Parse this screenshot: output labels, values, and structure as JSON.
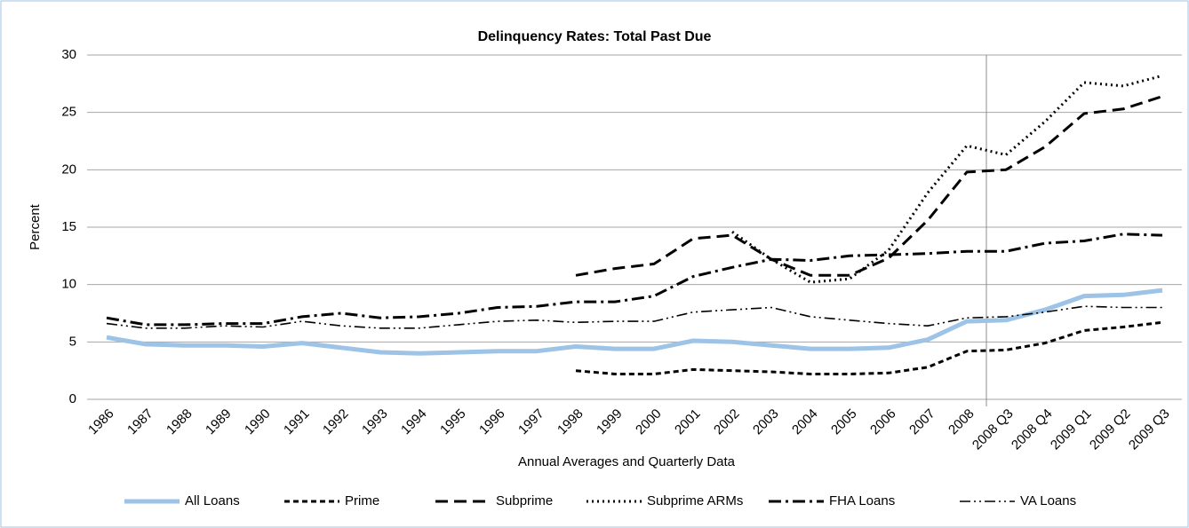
{
  "chart_data": {
    "type": "line",
    "title": "Delinquency Rates: Total Past Due",
    "xlabel": "Annual Averages and Quarterly Data",
    "ylabel": "Percent",
    "categories": [
      "1986",
      "1987",
      "1988",
      "1989",
      "1990",
      "1991",
      "1992",
      "1993",
      "1994",
      "1995",
      "1996",
      "1997",
      "1998",
      "1999",
      "2000",
      "2001",
      "2002",
      "2003",
      "2004",
      "2005",
      "2006",
      "2007",
      "2008",
      "2008 Q3",
      "2008 Q4",
      "2009 Q1",
      "2009 Q2",
      "2009 Q3"
    ],
    "ylim": [
      0,
      30
    ],
    "yticks": [
      0,
      5,
      10,
      15,
      20,
      25,
      30
    ],
    "grid": true,
    "legend": "bottom",
    "series": [
      {
        "name": "All Loans",
        "color": "#9dc3e6",
        "values": [
          5.4,
          4.8,
          4.7,
          4.7,
          4.6,
          4.9,
          4.5,
          4.1,
          4.0,
          4.1,
          4.2,
          4.2,
          4.6,
          4.4,
          4.4,
          5.1,
          5.0,
          4.7,
          4.4,
          4.4,
          4.5,
          5.2,
          6.8,
          6.9,
          7.8,
          9.0,
          9.1,
          9.5
        ]
      },
      {
        "name": "Prime",
        "color": "#000000",
        "values": [
          null,
          null,
          null,
          null,
          null,
          null,
          null,
          null,
          null,
          null,
          null,
          null,
          2.5,
          2.2,
          2.2,
          2.6,
          2.5,
          2.4,
          2.2,
          2.2,
          2.3,
          2.8,
          4.2,
          4.3,
          4.9,
          6.0,
          6.3,
          6.7
        ]
      },
      {
        "name": "Subprime",
        "color": "#000000",
        "values": [
          null,
          null,
          null,
          null,
          null,
          null,
          null,
          null,
          null,
          null,
          null,
          null,
          10.8,
          11.4,
          11.8,
          14.0,
          14.3,
          12.2,
          10.8,
          10.8,
          12.3,
          15.6,
          19.8,
          20.0,
          22.0,
          24.9,
          25.3,
          26.4
        ]
      },
      {
        "name": "Subprime ARMs",
        "color": "#000000",
        "values": [
          null,
          null,
          null,
          null,
          null,
          null,
          null,
          null,
          null,
          null,
          null,
          null,
          null,
          null,
          null,
          null,
          14.6,
          12.2,
          10.2,
          10.5,
          13.0,
          18.0,
          22.1,
          21.3,
          24.2,
          27.6,
          27.3,
          28.2
        ]
      },
      {
        "name": "FHA Loans",
        "color": "#000000",
        "values": [
          7.1,
          6.5,
          6.5,
          6.6,
          6.6,
          7.2,
          7.5,
          7.1,
          7.2,
          7.5,
          8.0,
          8.1,
          8.5,
          8.5,
          9.0,
          10.7,
          11.5,
          12.2,
          12.1,
          12.5,
          12.6,
          12.7,
          12.9,
          12.9,
          13.6,
          13.8,
          14.4,
          14.3
        ]
      },
      {
        "name": "VA Loans",
        "color": "#000000",
        "values": [
          6.6,
          6.2,
          6.2,
          6.4,
          6.3,
          6.8,
          6.4,
          6.2,
          6.2,
          6.5,
          6.8,
          6.9,
          6.7,
          6.8,
          6.8,
          7.6,
          7.8,
          8.0,
          7.2,
          6.9,
          6.6,
          6.4,
          7.1,
          7.2,
          7.6,
          8.1,
          8.0,
          8.0
        ]
      }
    ]
  }
}
